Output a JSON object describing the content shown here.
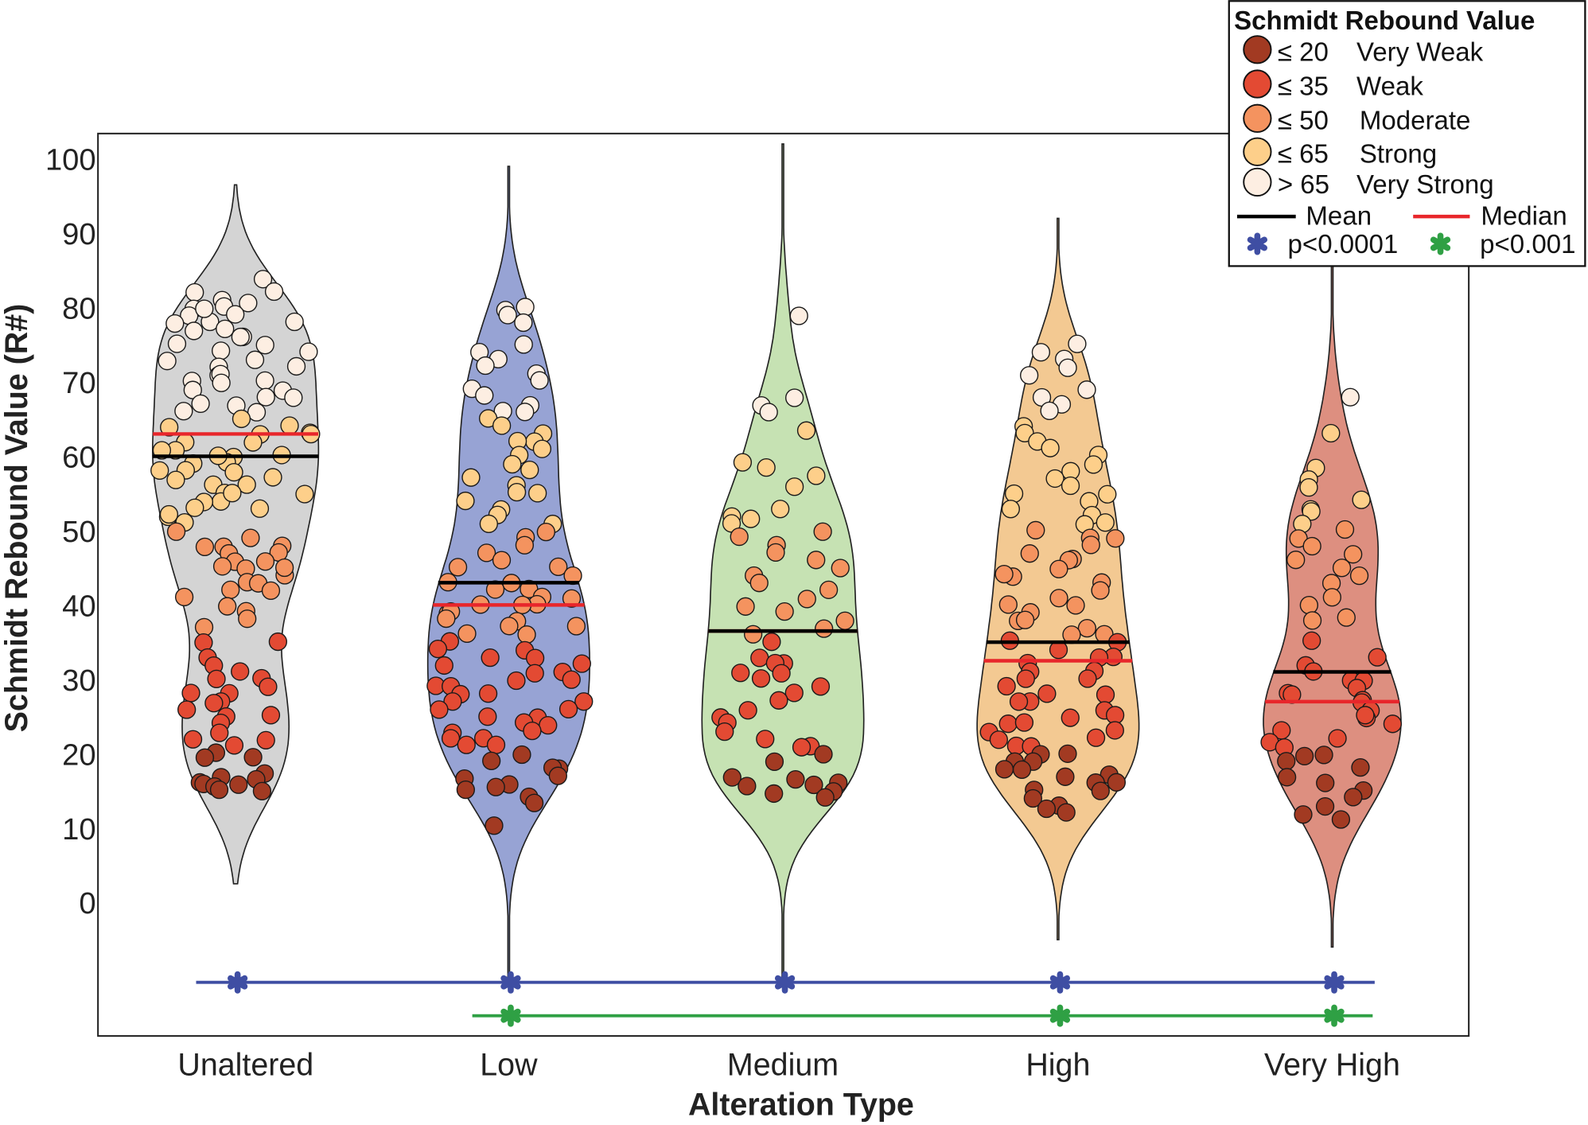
{
  "chart_data": {
    "type": "violin",
    "xlabel": "Alteration Type",
    "ylabel": "Schmidt Rebound Value (R#)",
    "ylim": [
      0,
      100
    ],
    "yticks": [
      0,
      10,
      20,
      30,
      40,
      50,
      60,
      70,
      80,
      90,
      100
    ],
    "grid": false,
    "legend_placement": "top-right",
    "categories": [
      "Unaltered",
      "Low",
      "Medium",
      "High",
      "Very High"
    ],
    "violin_colors": [
      "#d4d4d4",
      "#97a3d4",
      "#c6e2b3",
      "#f3c992",
      "#dd8f80"
    ],
    "violin_extent": [
      [
        2.5,
        96.5
      ],
      [
        -10,
        99
      ],
      [
        -10,
        102
      ],
      [
        -5,
        92
      ],
      [
        -6,
        86
      ]
    ],
    "mean": [
      60,
      43,
      36.5,
      35,
      31
    ],
    "median": [
      63,
      40,
      36.5,
      32.5,
      27
    ],
    "points": [
      [
        84,
        82,
        82,
        81,
        80.5,
        80,
        80,
        79,
        79,
        78,
        78,
        77,
        77,
        76,
        75,
        75,
        74,
        74,
        73,
        72,
        72,
        71,
        71,
        70,
        70,
        69,
        69,
        68,
        68,
        67,
        67,
        66,
        66,
        80,
        78,
        76,
        73,
        70,
        65,
        64,
        64,
        63,
        63,
        62,
        62,
        61,
        61,
        60,
        60,
        59,
        59,
        58,
        58,
        57,
        57,
        56,
        56,
        55,
        55,
        54,
        54,
        53,
        53,
        52,
        52,
        51,
        63,
        60,
        58,
        55,
        50,
        49,
        48,
        48,
        47,
        47,
        46,
        46,
        45,
        45,
        44,
        43,
        43,
        42,
        42,
        41,
        40,
        39,
        38,
        37,
        48,
        45,
        35,
        35,
        33,
        32,
        31,
        30,
        30,
        29,
        28,
        28,
        27,
        27,
        26,
        25,
        25,
        24,
        23,
        22,
        22,
        21,
        20,
        19.5,
        19.5,
        17.5,
        17,
        16.5,
        16,
        16,
        16,
        15.5,
        15,
        15
      ],
      [
        80,
        79.5,
        79,
        78,
        75,
        74,
        73,
        72,
        71,
        70,
        69,
        68,
        67,
        66,
        66,
        65,
        64,
        63,
        62,
        62,
        61,
        60,
        59,
        58,
        57,
        56,
        55,
        55,
        54,
        53,
        52,
        51,
        51,
        50,
        49,
        48,
        47,
        46,
        45,
        45,
        44,
        43,
        43,
        42,
        42,
        41,
        41,
        40,
        40,
        40,
        39,
        39,
        38,
        38,
        37,
        37,
        36,
        36,
        35,
        34,
        34,
        33,
        33,
        32,
        32,
        31,
        31,
        30,
        30,
        29,
        29,
        28,
        28,
        27,
        27,
        26,
        26,
        25,
        25,
        24,
        24,
        23,
        23,
        22,
        22,
        21,
        21,
        20,
        19,
        18,
        18,
        17,
        16.5,
        16,
        15.5,
        15,
        14,
        13.5,
        10.5
      ],
      [
        79,
        68,
        67,
        66,
        63.5,
        59,
        58.5,
        57.5,
        56,
        53,
        52,
        51.5,
        51,
        50,
        49,
        48,
        47,
        46,
        45,
        44,
        43,
        42,
        41,
        40,
        39,
        38,
        37,
        36,
        35,
        33,
        32,
        32,
        31,
        31,
        30,
        29,
        28,
        27,
        26,
        25,
        24,
        23,
        22,
        21,
        21,
        20,
        19,
        17,
        16.5,
        16,
        16,
        15.5,
        15,
        14.5,
        14
      ],
      [
        75,
        74,
        73,
        72,
        71,
        69,
        68,
        67,
        66,
        64,
        63,
        62,
        61,
        60,
        59,
        58,
        57,
        56,
        55,
        55,
        54,
        53,
        52,
        51,
        51,
        50,
        49,
        49,
        48,
        47,
        46,
        46,
        45,
        44,
        44,
        43,
        42,
        41,
        40,
        40,
        39,
        38,
        38,
        37,
        36,
        36,
        35,
        35,
        34,
        33,
        33,
        32,
        31,
        31,
        30,
        30,
        29,
        28,
        28,
        27,
        27,
        26,
        25,
        25,
        24,
        24,
        23,
        23,
        22,
        22,
        21,
        21,
        20,
        20,
        19,
        19,
        18,
        18,
        17,
        17,
        16,
        16,
        15,
        15,
        14,
        13,
        12.5,
        12
      ],
      [
        68,
        63,
        58.5,
        57,
        56,
        54,
        53,
        52.5,
        51,
        50,
        49,
        48,
        47,
        46,
        45,
        44,
        43,
        41,
        40,
        38.5,
        38,
        35,
        33,
        32,
        31,
        30,
        30,
        29,
        28,
        28,
        27,
        27,
        26,
        25,
        25,
        24,
        23,
        22,
        21.5,
        21,
        20,
        19.5,
        19,
        18,
        17,
        16,
        15,
        14,
        13,
        12,
        11
      ]
    ],
    "point_classes": [
      {
        "max": 20,
        "color": "#a23a22",
        "symbol": "≤ 20",
        "label": "Very Weak"
      },
      {
        "max": 35,
        "color": "#e34a33",
        "symbol": "≤ 35",
        "label": "Weak"
      },
      {
        "max": 50,
        "color": "#f4935f",
        "symbol": "≤ 50",
        "label": "Moderate"
      },
      {
        "max": 65,
        "color": "#fdcf8a",
        "symbol": "≤ 65",
        "label": "Strong"
      },
      {
        "max": 1000,
        "color": "#fdeee2",
        "symbol": "> 65",
        "label": "Very Strong"
      }
    ],
    "mean_color": "#000000",
    "median_color": "#e8262b",
    "significance": [
      {
        "label": "p<0.0001",
        "color": "#3f4ea3",
        "marked": [
          "Unaltered",
          "Low",
          "Medium",
          "High",
          "Very High"
        ]
      },
      {
        "label": "p<0.001",
        "color": "#2fa044",
        "marked": [
          "Low",
          "High",
          "Very High"
        ]
      }
    ],
    "legend": {
      "title": "Schmidt Rebound Value",
      "mean_label": "Mean",
      "median_label": "Median"
    }
  }
}
